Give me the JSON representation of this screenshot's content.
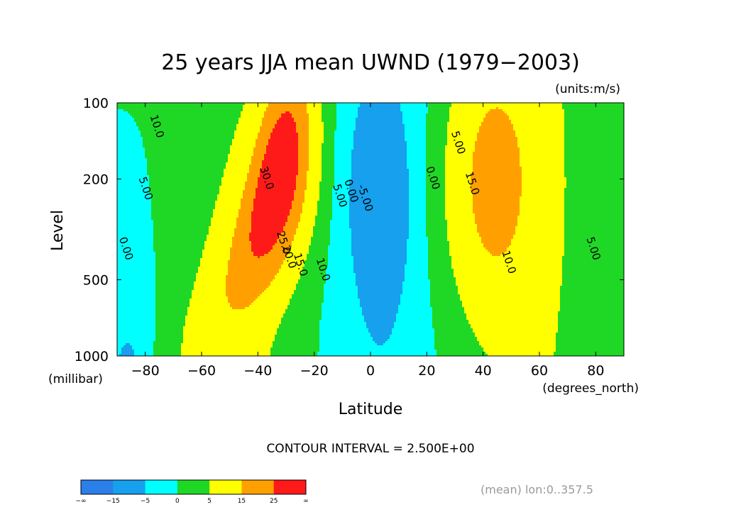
{
  "chart_data": {
    "type": "heatmap",
    "title": "25 years JJA mean UWND (1979−2003)",
    "units": "(units:m/s)",
    "xlabel": "Latitude",
    "x_units": "(degrees_north)",
    "ylabel": "Level",
    "y_units": "(millibar)",
    "x_ticks": [
      "−80",
      "−60",
      "−40",
      "−20",
      "0",
      "20",
      "40",
      "60",
      "80"
    ],
    "x_tick_values": [
      -80,
      -60,
      -40,
      -20,
      0,
      20,
      40,
      60,
      80
    ],
    "y_ticks": [
      "100",
      "200",
      "500",
      "1000"
    ],
    "y_tick_values": [
      100,
      200,
      500,
      1000
    ],
    "xlim": [
      -90,
      90
    ],
    "ylim": [
      1000,
      100
    ],
    "y_scale": "log",
    "contour_interval": "CONTOUR INTERVAL = 2.500E+00",
    "footer": "(mean) lon:0..357.5",
    "contour_labels": [
      {
        "text": "10.0",
        "lat": -77,
        "lev": 125
      },
      {
        "text": "5.00",
        "lat": -81,
        "lev": 220
      },
      {
        "text": "0.00",
        "lat": -88,
        "lev": 380
      },
      {
        "text": "30.0",
        "lat": -38,
        "lev": 200
      },
      {
        "text": "25.0",
        "lat": -32,
        "lev": 360
      },
      {
        "text": "20.0",
        "lat": -30,
        "lev": 410
      },
      {
        "text": "15.0",
        "lat": -26,
        "lev": 440
      },
      {
        "text": "10.0",
        "lat": -18,
        "lev": 460
      },
      {
        "text": "5.00",
        "lat": -12,
        "lev": 235
      },
      {
        "text": "0.00",
        "lat": -8,
        "lev": 225
      },
      {
        "text": "-5.00",
        "lat": -3,
        "lev": 240
      },
      {
        "text": "0.00",
        "lat": 21,
        "lev": 200
      },
      {
        "text": "5.00",
        "lat": 30,
        "lev": 145
      },
      {
        "text": "15.0",
        "lat": 35,
        "lev": 210
      },
      {
        "text": "10.0",
        "lat": 48,
        "lev": 430
      },
      {
        "text": "5.00",
        "lat": 78,
        "lev": 380
      }
    ],
    "colorbar": {
      "labels": [
        "−∞",
        "−15",
        "−5",
        "0",
        "5",
        "15",
        "25",
        "∞"
      ],
      "colors": [
        "#2b7fe8",
        "#16a0ee",
        "#00ffff",
        "#1fd825",
        "#ffff00",
        "#ffa000",
        "#ff1a1a"
      ]
    }
  }
}
